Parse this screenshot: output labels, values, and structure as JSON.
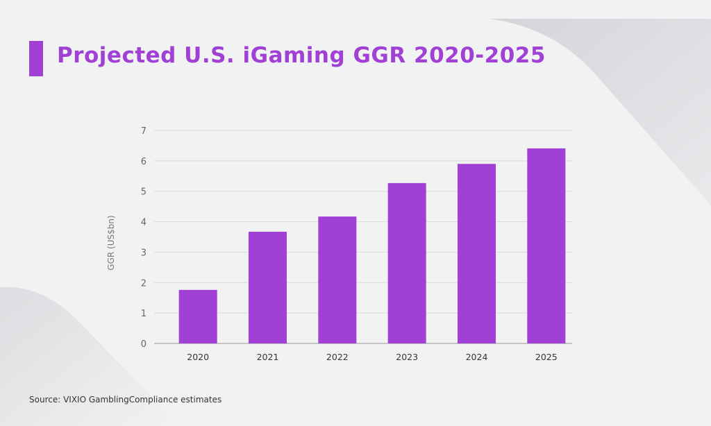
{
  "title": "Projected U.S. iGaming GGR 2020-2025",
  "source": "Source: VIXIO GamblingCompliance estimates",
  "colors": {
    "bar": "#a040d4",
    "title": "#a040d4",
    "background": "#f1f2f2"
  },
  "chart_data": {
    "type": "bar",
    "title": "Projected U.S. iGaming GGR 2020-2025",
    "xlabel": "",
    "ylabel": "GGR (US$bn)",
    "categories": [
      "2020",
      "2021",
      "2022",
      "2023",
      "2024",
      "2025"
    ],
    "values": [
      1.76,
      3.67,
      4.17,
      5.27,
      5.9,
      6.41
    ],
    "ylim": [
      0,
      7
    ],
    "yticks": [
      "0",
      "1",
      "2",
      "3",
      "4",
      "5",
      "6",
      "7"
    ],
    "grid": true,
    "legend": "none"
  }
}
